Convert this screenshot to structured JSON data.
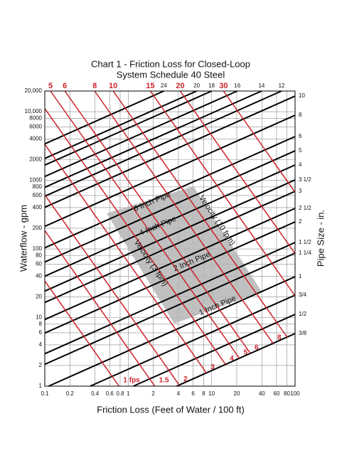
{
  "chart_data": {
    "type": "line",
    "title": "Chart 1  - Friction Loss for Closed-Loop",
    "subtitle": "System Schedule 40 Steel",
    "x_label": "Friction Loss (Feet of Water / 100 ft)",
    "y_label": "Waterflow - gpm",
    "y2_label": "Pipe Size - in.",
    "log_x": true,
    "log_y": true,
    "grid": true,
    "xlim": [
      0.1,
      100
    ],
    "xticks": [
      0.1,
      0.2,
      0.4,
      0.6,
      0.8,
      1,
      2,
      4,
      6,
      8,
      10,
      20,
      40,
      60,
      80,
      100
    ],
    "ylim": [
      1,
      20000
    ],
    "yticks": [
      1,
      2,
      4,
      6,
      8,
      10,
      20,
      40,
      60,
      80,
      100,
      200,
      400,
      600,
      800,
      1000,
      2000,
      4000,
      6000,
      8000,
      {
        "value": 10000,
        "label": "10,000"
      },
      {
        "value": 20000,
        "label": "20,000"
      }
    ],
    "series": [
      {
        "name": "3/8",
        "color": "#000000",
        "x": [
          3.8,
          100
        ],
        "values": [
          1,
          5.85
        ]
      },
      {
        "name": "1/2",
        "color": "#000000",
        "x": [
          1.15,
          100
        ],
        "values": [
          1,
          11.1
        ]
      },
      {
        "name": "3/4",
        "color": "#000000",
        "x": [
          0.35,
          100
        ],
        "values": [
          1,
          21.2
        ]
      },
      {
        "name": "1",
        "color": "#000000",
        "x": [
          0.111,
          100
        ],
        "values": [
          1,
          39.4
        ]
      },
      {
        "name": "1 1/4",
        "color": "#000000",
        "x": [
          0.1,
          100
        ],
        "values": [
          2.08,
          86.7
        ]
      },
      {
        "name": "1 1/2",
        "color": "#000000",
        "x": [
          0.1,
          100
        ],
        "values": [
          2.97,
          124
        ]
      },
      {
        "name": "2",
        "color": "#000000",
        "x": [
          0.1,
          100
        ],
        "values": [
          5.95,
          248
        ]
      },
      {
        "name": "2 1/2",
        "color": "#000000",
        "x": [
          0.1,
          100
        ],
        "values": [
          9.35,
          390
        ]
      },
      {
        "name": "3",
        "color": "#000000",
        "x": [
          0.1,
          100
        ],
        "values": [
          16.6,
          691
        ]
      },
      {
        "name": "3 1/2",
        "color": "#000000",
        "x": [
          0.1,
          100
        ],
        "values": [
          24.3,
          1012
        ]
      },
      {
        "name": "4",
        "color": "#000000",
        "x": [
          0.1,
          100
        ],
        "values": [
          40,
          1670
        ]
      },
      {
        "name": "5",
        "color": "#000000",
        "x": [
          0.1,
          100
        ],
        "values": [
          64.5,
          2690
        ]
      },
      {
        "name": "6",
        "color": "#000000",
        "x": [
          0.1,
          100
        ],
        "values": [
          104,
          4340
        ]
      },
      {
        "name": "8",
        "color": "#000000",
        "x": [
          0.1,
          100
        ],
        "values": [
          213,
          8870
        ]
      },
      {
        "name": "10",
        "color": "#000000",
        "x": [
          0.1,
          100
        ],
        "values": [
          405,
          16900
        ]
      },
      {
        "name": "12",
        "color": "#000000",
        "x": [
          0.1,
          68.9
        ],
        "values": [
          586,
          20000
        ]
      },
      {
        "name": "14",
        "color": "#000000",
        "x": [
          0.1,
          39.7
        ],
        "values": [
          791,
          20000
        ]
      },
      {
        "name": "16",
        "color": "#000000",
        "x": [
          0.1,
          20.3
        ],
        "values": [
          1135,
          20000
        ]
      },
      {
        "name": "18",
        "color": "#000000",
        "x": [
          0.1,
          10
        ],
        "values": [
          1664,
          20000
        ]
      },
      {
        "name": "20",
        "color": "#000000",
        "x": [
          0.1,
          6.62
        ],
        "values": [
          2080,
          20000
        ]
      },
      {
        "name": "24",
        "color": "#000000",
        "x": [
          0.1,
          2.67
        ],
        "values": [
          3400,
          20000
        ]
      },
      {
        "name": "1 fps",
        "color": "#cc2229",
        "x": [
          0.1,
          0.776
        ],
        "values": [
          34,
          1
        ]
      },
      {
        "name": "1.5",
        "color": "#cc2229",
        "x": [
          0.1,
          2.08
        ],
        "values": [
          185,
          1
        ]
      },
      {
        "name": "2",
        "color": "#cc2229",
        "x": [
          0.1,
          4.09
        ],
        "values": [
          615,
          1.04
        ]
      },
      {
        "name": "3",
        "color": "#cc2229",
        "x": [
          0.1,
          8.65
        ],
        "values": [
          3350,
          1.56
        ]
      },
      {
        "name": "4",
        "color": "#cc2229",
        "x": [
          0.1,
          14.7
        ],
        "values": [
          11100,
          2.07
        ]
      },
      {
        "name": "5",
        "color": "#cc2229",
        "x": [
          0.117,
          21.5
        ],
        "values": [
          20000,
          2.55
        ]
      },
      {
        "name": "6",
        "color": "#cc2229",
        "x": [
          0.174,
          29.1
        ],
        "values": [
          20000,
          3.01
        ]
      },
      {
        "name": "8",
        "color": "#cc2229",
        "x": [
          0.396,
          54.4
        ],
        "values": [
          20000,
          4.21
        ]
      },
      {
        "name": "10",
        "color": "#cc2229",
        "x": [
          0.66,
          80.2
        ],
        "values": [
          20000,
          5.19
        ]
      },
      {
        "name": "15",
        "color": "#cc2229",
        "x": [
          1.84,
          100
        ],
        "values": [
          20000,
          20.7
        ]
      },
      {
        "name": "20",
        "color": "#cc2229",
        "x": [
          4.2,
          100
        ],
        "values": [
          20000,
          85.7
        ]
      },
      {
        "name": "30",
        "color": "#cc2229",
        "x": [
          13.9,
          100
        ],
        "values": [
          20000,
          671
        ]
      }
    ],
    "annotations": [
      "6 Inch Pipe",
      "4 Inch Pipe",
      "2 Inch Pipe",
      "1 Inch Pipe",
      "Velocity (10 fpm)",
      "Velocity (3 fpm)"
    ]
  }
}
